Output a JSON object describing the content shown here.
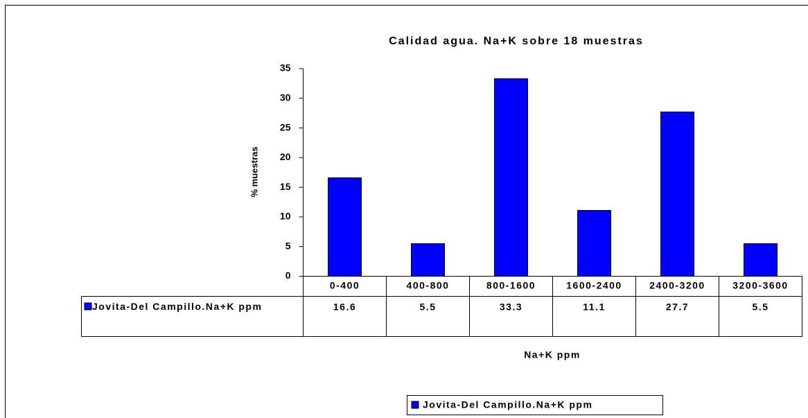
{
  "chart_data": {
    "type": "bar",
    "title": "Calidad agua. Na+K sobre 18 muestras",
    "y_label": "% muestras",
    "x_label": "Na+K ppm",
    "categories": [
      "0-400",
      "400-800",
      "800-1600",
      "1600-2400",
      "2400-3200",
      "3200-3600"
    ],
    "series": [
      {
        "name": "Jovita-Del Campillo.Na+K ppm",
        "color": "#0000ff",
        "values": [
          16.6,
          5.5,
          33.3,
          11.1,
          27.7,
          5.5
        ]
      }
    ],
    "ylim": [
      0,
      35
    ],
    "yticks": [
      0,
      5,
      10,
      15,
      20,
      25,
      30,
      35
    ],
    "legend": "bottom",
    "data_table": true
  }
}
